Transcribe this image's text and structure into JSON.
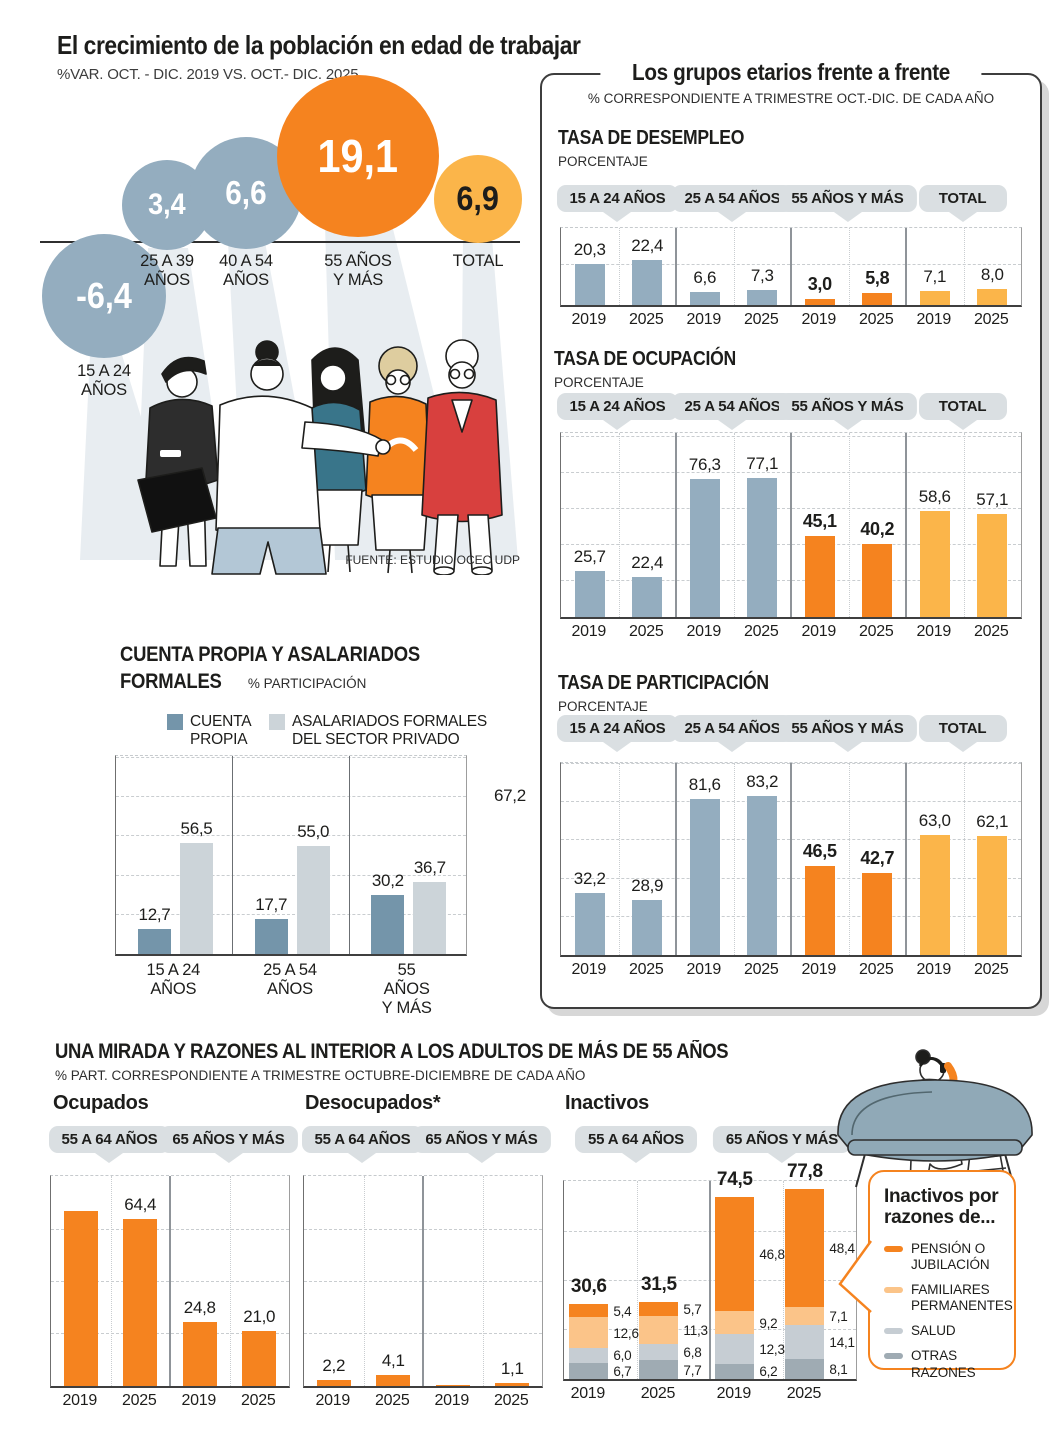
{
  "colors": {
    "blue_gray": "#94adbf",
    "orange": "#f5831f",
    "amber": "#fbb54a",
    "cuenta_dark": "#7495aa",
    "cuenta_light": "#ccd4d9",
    "fam_orange": "#fbc489",
    "salud_gray": "#c6cdd3",
    "otras_gray": "#9fabb3",
    "pill_gray": "#dadfe2",
    "legend_border": "#f5831f"
  },
  "header": {
    "title": "El crecimiento de la población en edad de trabajar",
    "subtitle": "%VAR. OCT. - DIC. 2019 VS. OCT.- DIC. 2025",
    "source": "FUENTE: ESTUDIO OCEC UDP"
  },
  "panel": {
    "title": "Los grupos etarios frente a frente",
    "subtitle": "% CORRESPONDIENTE A TRIMESTRE OCT.-DIC. DE CADA AÑO"
  },
  "cuenta_section": {
    "title_line1": "CUENTA PROPIA Y ASALARIADOS",
    "title_line2": "FORMALES",
    "unit": "% PARTICIPACIÓN",
    "stray_label": "67,2"
  },
  "bottom": {
    "title": "UNA MIRADA Y RAZONES AL INTERIOR A LOS ADULTOS DE MÁS DE 55 AÑOS",
    "subtitle": "% PART. CORRESPONDIENTE A TRIMESTRE OCTUBRE-DICIEMBRE DE CADA AÑO",
    "legend_box": {
      "title": "Inactivos por\nrazones de...",
      "items": [
        {
          "label": "PENSIÓN O JUBILACIÓN",
          "color_key": "orange"
        },
        {
          "label": "FAMILIARES PERMANENTES",
          "color_key": "fam_orange"
        },
        {
          "label": "SALUD",
          "color_key": "salud_gray"
        },
        {
          "label": "OTRAS RAZONES",
          "color_key": "otras_gray"
        }
      ]
    }
  },
  "chart_data": [
    {
      "type": "bubble",
      "title": "El crecimiento de la población en edad de trabajar",
      "subtitle": "%VAR. OCT. - DIC. 2019 VS. OCT.- DIC. 2025",
      "categories": [
        "15 A 24\nAÑOS",
        "25 A 39\nAÑOS",
        "40 A 54\nAÑOS",
        "55 AÑOS\nY MÁS",
        "TOTAL"
      ],
      "values": [
        -6.4,
        3.4,
        6.6,
        19.1,
        6.9
      ],
      "display": [
        "-6,4",
        "3,4",
        "6,6",
        "19,1",
        "6,9"
      ],
      "color_keys": [
        "blue_gray",
        "blue_gray",
        "blue_gray",
        "orange",
        "amber"
      ]
    },
    {
      "type": "bar",
      "title": "TASA DE DESEMPLEO",
      "ylabel": "PORCENTAJE",
      "ylim": [
        0,
        38.5
      ],
      "years": [
        "2019",
        "2025"
      ],
      "groups": [
        {
          "label": "15 A 24 AÑOS",
          "color_key": "blue_gray",
          "values": [
            20.3,
            22.4
          ],
          "display": [
            "20,3",
            "22,4"
          ],
          "bold": false
        },
        {
          "label": "25 A 54 AÑOS",
          "color_key": "blue_gray",
          "values": [
            6.6,
            7.3
          ],
          "display": [
            "6,6",
            "7,3"
          ],
          "bold": false
        },
        {
          "label": "55 AÑOS Y MÁS",
          "color_key": "orange",
          "values": [
            3.0,
            5.8
          ],
          "display": [
            "3,0",
            "5,8"
          ],
          "bold": true
        },
        {
          "label": "TOTAL",
          "color_key": "amber",
          "values": [
            7.1,
            8.0
          ],
          "display": [
            "7,1",
            "8,0"
          ],
          "bold": false
        }
      ]
    },
    {
      "type": "bar",
      "title": "TASA DE OCUPACIÓN",
      "ylabel": "PORCENTAJE",
      "ylim": [
        0,
        102
      ],
      "years": [
        "2019",
        "2025"
      ],
      "groups": [
        {
          "label": "15 A 24 AÑOS",
          "color_key": "blue_gray",
          "values": [
            25.7,
            22.4
          ],
          "display": [
            "25,7",
            "22,4"
          ],
          "bold": false
        },
        {
          "label": "25 A 54 AÑOS",
          "color_key": "blue_gray",
          "values": [
            76.3,
            77.1
          ],
          "display": [
            "76,3",
            "77,1"
          ],
          "bold": false
        },
        {
          "label": "55 AÑOS Y MÁS",
          "color_key": "orange",
          "values": [
            45.1,
            40.2
          ],
          "display": [
            "45,1",
            "40,2"
          ],
          "bold": true
        },
        {
          "label": "TOTAL",
          "color_key": "amber",
          "values": [
            58.6,
            57.1
          ],
          "display": [
            "58,6",
            "57,1"
          ],
          "bold": false
        }
      ]
    },
    {
      "type": "bar",
      "title": "TASA DE PARTICIPACIÓN",
      "ylabel": "PORCENTAJE",
      "ylim": [
        0,
        100.5
      ],
      "years": [
        "2019",
        "2025"
      ],
      "groups": [
        {
          "label": "15 A 24 AÑOS",
          "color_key": "blue_gray",
          "values": [
            32.2,
            28.9
          ],
          "display": [
            "32,2",
            "28,9"
          ],
          "bold": false
        },
        {
          "label": "25 A 54 AÑOS",
          "color_key": "blue_gray",
          "values": [
            81.6,
            83.2
          ],
          "display": [
            "81,6",
            "83,2"
          ],
          "bold": false
        },
        {
          "label": "55 AÑOS Y MÁS",
          "color_key": "orange",
          "values": [
            46.5,
            42.7
          ],
          "display": [
            "46,5",
            "42,7"
          ],
          "bold": true
        },
        {
          "label": "TOTAL",
          "color_key": "amber",
          "values": [
            63.0,
            62.1
          ],
          "display": [
            "63,0",
            "62,1"
          ],
          "bold": false
        }
      ]
    },
    {
      "type": "bar",
      "title": "CUENTA PROPIA Y ASALARIADOS FORMALES",
      "ylabel": "% PARTICIPACIÓN",
      "ylim": [
        0,
        101
      ],
      "categories": [
        "15 A 24\nAÑOS",
        "25 A 54\nAÑOS",
        "55 AÑOS\nY MÁS"
      ],
      "series": [
        {
          "name": "CUENTA\nPROPIA",
          "color_key": "cuenta_dark",
          "values": [
            12.7,
            17.7,
            30.2
          ],
          "display": [
            "12,7",
            "17,7",
            "30,2"
          ]
        },
        {
          "name": "ASALARIADOS FORMALES\nDEL SECTOR PRIVADO",
          "color_key": "cuenta_light",
          "values": [
            56.5,
            55.0,
            36.7
          ],
          "display": [
            "56,5",
            "55,0",
            "36,7"
          ]
        }
      ],
      "annotation": "67,2"
    },
    {
      "type": "bar",
      "title": "Ocupados",
      "ylim": [
        0,
        80.8
      ],
      "years": [
        "2019",
        "2025"
      ],
      "groups": [
        {
          "label": "55 A 64 AÑOS",
          "color_key": "orange",
          "values": [
            67.2,
            64.4
          ],
          "display": [
            "",
            "64,4"
          ],
          "bold": false
        },
        {
          "label": "65 AÑOS Y MÁS",
          "color_key": "orange",
          "values": [
            24.8,
            21.0
          ],
          "display": [
            "24,8",
            "21,0"
          ],
          "bold": false
        }
      ]
    },
    {
      "type": "bar",
      "title": "Desocupados*",
      "ylim": [
        0,
        80.8
      ],
      "years": [
        "2019",
        "2025"
      ],
      "groups": [
        {
          "label": "55 A 64 AÑOS",
          "color_key": "orange",
          "values": [
            2.2,
            4.1
          ],
          "display": [
            "2,2",
            "4,1"
          ],
          "bold": false
        },
        {
          "label": "65 AÑOS Y MÁS",
          "color_key": "orange",
          "values": [
            0.4,
            1.1
          ],
          "display": [
            "",
            "1,1"
          ],
          "bold": false
        }
      ]
    },
    {
      "type": "stacked_bar",
      "title": "Inactivos",
      "ylim": [
        0,
        81
      ],
      "years": [
        "2019",
        "2025"
      ],
      "segments_top_to_bottom": [
        "PENSIÓN O JUBILACIÓN",
        "FAMILIARES PERMANENTES",
        "SALUD",
        "OTRAS RAZONES"
      ],
      "segment_color_keys": [
        "orange",
        "fam_orange",
        "salud_gray",
        "otras_gray"
      ],
      "groups": [
        {
          "label": "55 A 64 AÑOS",
          "bars": [
            {
              "year": "2019",
              "total_display": "30,6",
              "values": [
                5.4,
                12.6,
                6.0,
                6.7
              ],
              "display": [
                "5,4",
                "12,6",
                "6,0",
                "6,7"
              ]
            },
            {
              "year": "2025",
              "total_display": "31,5",
              "values": [
                5.7,
                11.3,
                6.8,
                7.7
              ],
              "display": [
                "5,7",
                "11,3",
                "6,8",
                "7,7"
              ]
            }
          ]
        },
        {
          "label": "65 AÑOS Y MÁS",
          "bars": [
            {
              "year": "2019",
              "total_display": "74,5",
              "values": [
                46.8,
                9.2,
                12.3,
                6.2
              ],
              "display": [
                "46,8",
                "9,2",
                "12,3",
                "6,2"
              ]
            },
            {
              "year": "2025",
              "total_display": "77,8",
              "values": [
                48.4,
                7.1,
                14.1,
                8.1
              ],
              "display": [
                "48,4",
                "7,1",
                "14,1",
                "8,1"
              ]
            }
          ]
        }
      ]
    }
  ]
}
